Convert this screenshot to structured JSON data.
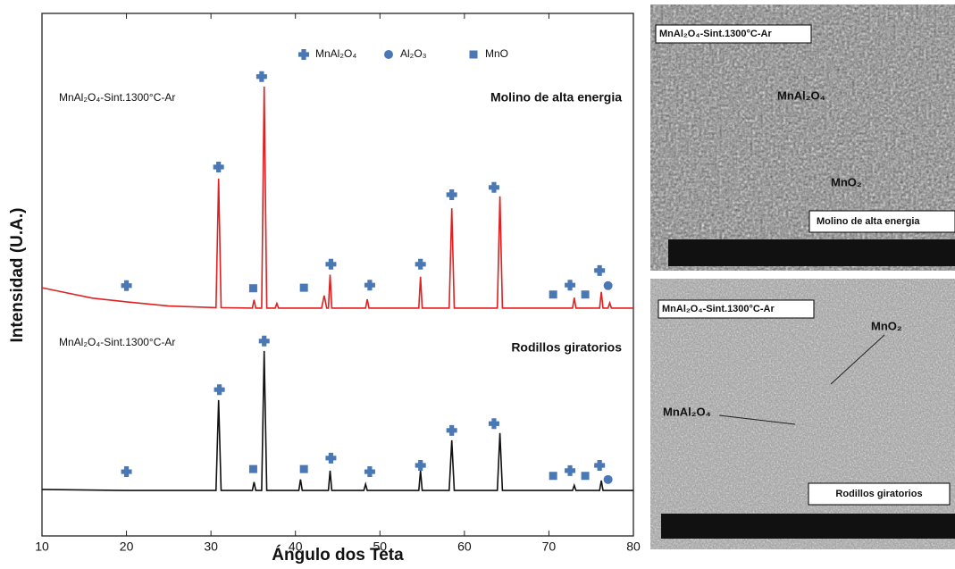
{
  "chart_data": {
    "type": "line",
    "x_label": "Ángulo dos Teta",
    "y_label": "Intensidad (U.A.)",
    "xlim": [
      10,
      80
    ],
    "xticks": [
      10,
      20,
      30,
      40,
      50,
      60,
      70,
      80
    ],
    "ylim": [
      0,
      100
    ],
    "legend": "top",
    "lines": [
      {
        "sample": "MnAl₂O₄-Sint.1300°C-Ar",
        "label": "Molino de alta energia",
        "color": "#e02020",
        "x": [
          10,
          13,
          16,
          20,
          25,
          30.6,
          30.9,
          31.2,
          34.9,
          35.1,
          35.3,
          36.0,
          36.3,
          36.6,
          37.6,
          37.8,
          38.0,
          43.1,
          43.4,
          43.7,
          43.9,
          44.1,
          44.3,
          48.3,
          48.5,
          48.7,
          54.6,
          54.8,
          55.0,
          58.2,
          58.5,
          58.8,
          63.9,
          64.2,
          64.5,
          72.8,
          73.0,
          73.2,
          76.0,
          76.2,
          76.4,
          77.0,
          77.2,
          77.4,
          80
        ],
        "values": [
          47.5,
          46.5,
          45.5,
          44.8,
          44.0,
          43.7,
          68.4,
          43.7,
          43.6,
          45.2,
          43.6,
          43.6,
          86.0,
          43.6,
          43.6,
          44.5,
          43.6,
          43.6,
          46.0,
          43.6,
          43.6,
          50.0,
          43.6,
          43.6,
          45.3,
          43.6,
          43.6,
          49.6,
          43.6,
          43.6,
          62.7,
          43.6,
          43.6,
          65.0,
          43.6,
          43.6,
          45.6,
          43.6,
          43.6,
          46.7,
          43.6,
          43.6,
          44.6,
          43.6,
          43.6
        ]
      },
      {
        "sample": "MnAl₂O₄-Sint.1300°C-Ar",
        "label": "Rodillos giratorios",
        "color": "#111111",
        "x": [
          10,
          20,
          30.6,
          30.9,
          31.2,
          34.9,
          35.1,
          35.3,
          36.0,
          36.3,
          36.6,
          40.4,
          40.6,
          40.8,
          43.9,
          44.1,
          44.3,
          48.1,
          48.3,
          48.5,
          54.6,
          54.8,
          55.0,
          58.2,
          58.5,
          58.8,
          63.9,
          64.2,
          64.5,
          72.8,
          73.0,
          73.2,
          76.0,
          76.2,
          76.4,
          80
        ],
        "values": [
          8.9,
          8.7,
          8.7,
          26.0,
          8.7,
          8.7,
          10.3,
          8.7,
          8.7,
          35.4,
          8.7,
          8.7,
          10.8,
          8.7,
          8.7,
          12.5,
          8.7,
          8.7,
          9.9,
          8.7,
          8.7,
          12.5,
          8.7,
          8.7,
          18.3,
          8.7,
          8.7,
          19.7,
          8.7,
          8.7,
          9.7,
          8.7,
          8.7,
          10.6,
          8.7,
          8.7
        ]
      }
    ],
    "series": [
      {
        "name": "MnAl₂O₄",
        "color": "#4a78b4",
        "marker": "plus",
        "x": [
          20,
          30.9,
          36,
          44.2,
          48.8,
          54.8,
          58.5,
          63.5,
          72.5,
          76,
          20,
          31,
          36.3,
          44.2,
          48.8,
          54.8,
          58.5,
          63.5,
          72.5,
          76
        ],
        "values": [
          47.9,
          70.6,
          87.9,
          52.0,
          48.0,
          52.0,
          65.3,
          66.7,
          48.0,
          50.8,
          12.3,
          28.0,
          37.3,
          14.9,
          12.3,
          13.5,
          20.2,
          21.5,
          12.5,
          13.5
        ]
      },
      {
        "name": "Al₂O₃",
        "color": "#4a78b4",
        "marker": "circle",
        "x": [
          77,
          77
        ],
        "values": [
          47.9,
          10.8
        ]
      },
      {
        "name": "MnO",
        "color": "#4a78b4",
        "marker": "square",
        "x": [
          35,
          41,
          70.5,
          74.3,
          35,
          41,
          70.5,
          74.3
        ],
        "values": [
          47.4,
          47.5,
          46.2,
          46.2,
          12.8,
          12.8,
          11.5,
          11.5
        ]
      }
    ]
  },
  "micrographs": [
    {
      "title": "MnAl₂O₄-Sint.1300°C-Ar",
      "label": "Molino de alta energia",
      "phases": [
        "MnAl₂O₄",
        "MnO₂"
      ]
    },
    {
      "title": "MnAl₂O₄-Sint.1300°C-Ar",
      "label": "Rodillos giratorios",
      "phases": [
        "MnO₂",
        "MnAl₂O₄"
      ]
    }
  ]
}
